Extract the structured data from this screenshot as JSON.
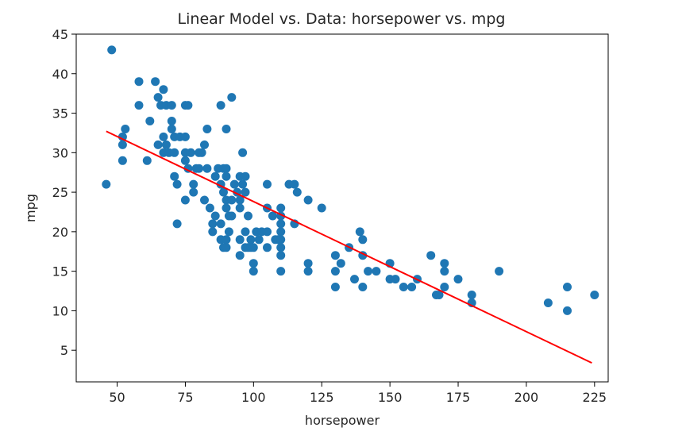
{
  "chart_data": {
    "type": "scatter",
    "title": "Linear Model vs. Data: horsepower vs. mpg",
    "xlabel": "horsepower",
    "ylabel": "mpg",
    "xlim": [
      35,
      230
    ],
    "ylim": [
      1,
      45
    ],
    "xticks": [
      50,
      75,
      100,
      125,
      150,
      175,
      200,
      225
    ],
    "yticks": [
      5,
      10,
      15,
      20,
      25,
      30,
      35,
      40,
      45
    ],
    "grid": false,
    "point_color": "#1f77b4",
    "line_color": "#ff0000",
    "points": [
      [
        46,
        26
      ],
      [
        48,
        43
      ],
      [
        52,
        29
      ],
      [
        52,
        31
      ],
      [
        52,
        32
      ],
      [
        53,
        33
      ],
      [
        58,
        39
      ],
      [
        58,
        36
      ],
      [
        61,
        29
      ],
      [
        62,
        34
      ],
      [
        64,
        39
      ],
      [
        65,
        37
      ],
      [
        65,
        31
      ],
      [
        66,
        36
      ],
      [
        67,
        38
      ],
      [
        67,
        32
      ],
      [
        67,
        30
      ],
      [
        68,
        36
      ],
      [
        68,
        31
      ],
      [
        69,
        30
      ],
      [
        70,
        36
      ],
      [
        70,
        34
      ],
      [
        70,
        33
      ],
      [
        71,
        32
      ],
      [
        71,
        30
      ],
      [
        71,
        27
      ],
      [
        72,
        26
      ],
      [
        72,
        21
      ],
      [
        73,
        32
      ],
      [
        75,
        36
      ],
      [
        75,
        32
      ],
      [
        75,
        30
      ],
      [
        75,
        29
      ],
      [
        75,
        24
      ],
      [
        76,
        36
      ],
      [
        76,
        28
      ],
      [
        77,
        30
      ],
      [
        78,
        26
      ],
      [
        78,
        25
      ],
      [
        79,
        28
      ],
      [
        80,
        30
      ],
      [
        80,
        28
      ],
      [
        81,
        30
      ],
      [
        82,
        31
      ],
      [
        82,
        24
      ],
      [
        83,
        33
      ],
      [
        83,
        28
      ],
      [
        84,
        23
      ],
      [
        85,
        21
      ],
      [
        85,
        20
      ],
      [
        86,
        27
      ],
      [
        86,
        22
      ],
      [
        87,
        28
      ],
      [
        88,
        36
      ],
      [
        88,
        26
      ],
      [
        88,
        21
      ],
      [
        88,
        19
      ],
      [
        89,
        28
      ],
      [
        89,
        25
      ],
      [
        89,
        18
      ],
      [
        90,
        33
      ],
      [
        90,
        28
      ],
      [
        90,
        27
      ],
      [
        90,
        24
      ],
      [
        90,
        23
      ],
      [
        90,
        19
      ],
      [
        90,
        18
      ],
      [
        91,
        22
      ],
      [
        91,
        20
      ],
      [
        92,
        37
      ],
      [
        92,
        24
      ],
      [
        92,
        22
      ],
      [
        93,
        26
      ],
      [
        94,
        25
      ],
      [
        95,
        27
      ],
      [
        95,
        24
      ],
      [
        95,
        23
      ],
      [
        95,
        19
      ],
      [
        95,
        17
      ],
      [
        96,
        30
      ],
      [
        96,
        26
      ],
      [
        97,
        27
      ],
      [
        97,
        25
      ],
      [
        97,
        20
      ],
      [
        97,
        18
      ],
      [
        98,
        22
      ],
      [
        98,
        18
      ],
      [
        99,
        19
      ],
      [
        99,
        18
      ],
      [
        100,
        18
      ],
      [
        100,
        16
      ],
      [
        100,
        15
      ],
      [
        101,
        20
      ],
      [
        102,
        19
      ],
      [
        103,
        20
      ],
      [
        105,
        26
      ],
      [
        105,
        23
      ],
      [
        105,
        20
      ],
      [
        105,
        18
      ],
      [
        107,
        22
      ],
      [
        108,
        19
      ],
      [
        109,
        19
      ],
      [
        110,
        23
      ],
      [
        110,
        22
      ],
      [
        110,
        21
      ],
      [
        110,
        20
      ],
      [
        110,
        19
      ],
      [
        110,
        18
      ],
      [
        110,
        17
      ],
      [
        110,
        15
      ],
      [
        113,
        26
      ],
      [
        115,
        26
      ],
      [
        115,
        21
      ],
      [
        116,
        25
      ],
      [
        120,
        24
      ],
      [
        120,
        16
      ],
      [
        120,
        15
      ],
      [
        125,
        23
      ],
      [
        130,
        17
      ],
      [
        130,
        15
      ],
      [
        130,
        13
      ],
      [
        132,
        16
      ],
      [
        135,
        18
      ],
      [
        137,
        14
      ],
      [
        139,
        20
      ],
      [
        140,
        19
      ],
      [
        140,
        17
      ],
      [
        140,
        13
      ],
      [
        142,
        15
      ],
      [
        145,
        15
      ],
      [
        150,
        16
      ],
      [
        150,
        14
      ],
      [
        152,
        14
      ],
      [
        155,
        13
      ],
      [
        158,
        13
      ],
      [
        160,
        14
      ],
      [
        165,
        17
      ],
      [
        167,
        12
      ],
      [
        168,
        12
      ],
      [
        170,
        16
      ],
      [
        170,
        15
      ],
      [
        170,
        13
      ],
      [
        175,
        14
      ],
      [
        180,
        12
      ],
      [
        180,
        11
      ],
      [
        190,
        15
      ],
      [
        208,
        11
      ],
      [
        215,
        13
      ],
      [
        215,
        10
      ],
      [
        225,
        12
      ]
    ],
    "fit_line": {
      "x": [
        46,
        224
      ],
      "y": [
        32.7,
        3.4
      ]
    }
  }
}
